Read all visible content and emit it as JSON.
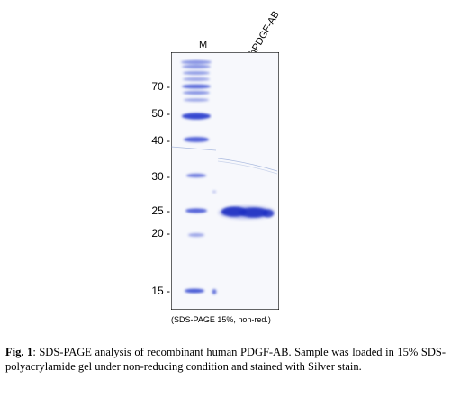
{
  "lanes": {
    "marker": "M",
    "sample": "hPDGF-AB"
  },
  "mw_labels": [
    "70 -",
    "50 -",
    "40 -",
    "30 -",
    "25 -",
    "20 -",
    "15 -"
  ],
  "mw_ticks": [
    "70",
    "50",
    "40",
    "30",
    "25",
    "20",
    "15"
  ],
  "gel_caption": "(SDS-PAGE 15%, non-red.)",
  "figure_caption": {
    "label": "Fig. 1",
    "text": ": SDS-PAGE analysis of recombinant human PDGF-AB. Sample was loaded in 15% SDS-polyacrylamide gel under non-reducing condition and stained with Silver stain."
  },
  "colors": {
    "band": "#1a2fc2",
    "band_light": "#6d7fe0",
    "gel_background": "#f7f8fc",
    "border": "#000000"
  }
}
